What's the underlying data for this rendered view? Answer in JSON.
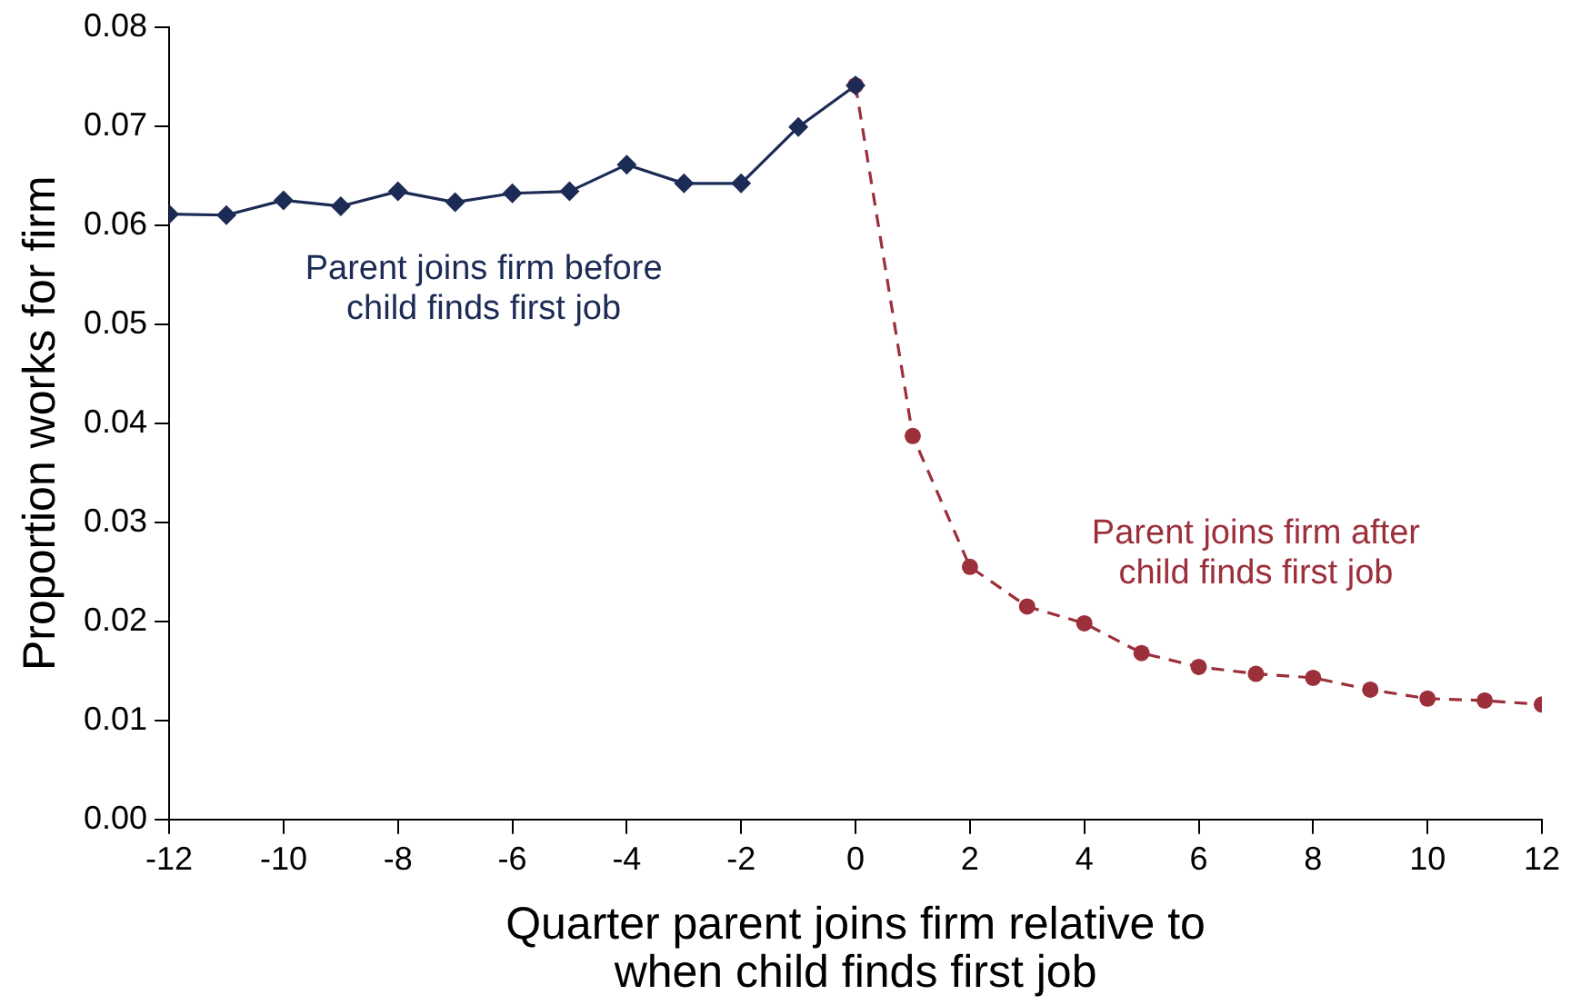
{
  "chart_data": {
    "type": "line",
    "xlabel": "Quarter parent joins firm relative to when child finds first job",
    "ylabel": "Proportion works for firm",
    "xlim": [
      -12,
      12
    ],
    "xticks": [
      -12,
      -10,
      -8,
      -6,
      -4,
      -2,
      0,
      2,
      4,
      6,
      8,
      10,
      12
    ],
    "ylim": [
      0,
      0.08
    ],
    "yticks": [
      {
        "value": 0,
        "label": "0.00"
      },
      {
        "value": 0.01,
        "label": "0.01"
      },
      {
        "value": 0.02,
        "label": "0.02"
      },
      {
        "value": 0.03,
        "label": "0.03"
      },
      {
        "value": 0.04,
        "label": "0.04"
      },
      {
        "value": 0.05,
        "label": "0.05"
      },
      {
        "value": 0.06,
        "label": "0.06"
      },
      {
        "value": 0.07,
        "label": "0.07"
      },
      {
        "value": 0.08,
        "label": "0.08"
      }
    ],
    "grid": false,
    "legend": false,
    "series": [
      {
        "name": "Parent joins firm after child finds first job",
        "color": "#9b2f3a",
        "marker": "circle",
        "line_style": "dashed",
        "x": [
          0,
          1,
          2,
          3,
          4,
          5,
          6,
          7,
          8,
          9,
          10,
          11,
          12
        ],
        "values": [
          0.0741,
          0.0387,
          0.0255,
          0.0215,
          0.0198,
          0.0168,
          0.0154,
          0.0147,
          0.0143,
          0.0131,
          0.0122,
          0.012,
          0.0116
        ]
      },
      {
        "name": "Parent joins firm before child finds first job",
        "color": "#1c2b55",
        "marker": "diamond",
        "line_style": "solid",
        "x": [
          -12,
          -11,
          -10,
          -9,
          -8,
          -7,
          -6,
          -5,
          -4,
          -3,
          -2,
          -1,
          0
        ],
        "values": [
          0.0611,
          0.061,
          0.0625,
          0.0619,
          0.0634,
          0.0623,
          0.0632,
          0.0634,
          0.0661,
          0.0642,
          0.0642,
          0.0699,
          0.0741
        ]
      }
    ]
  }
}
